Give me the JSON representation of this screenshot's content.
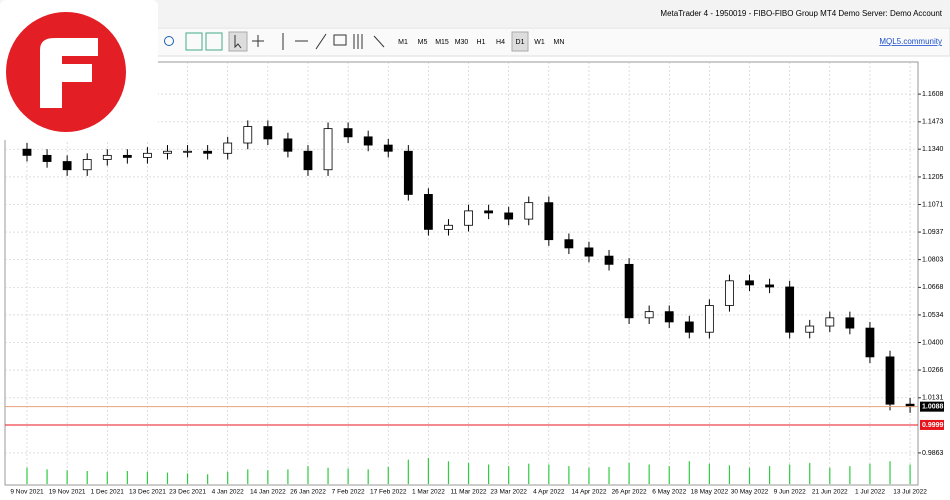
{
  "window": {
    "title": "MetaTrader 4 - 1950019 - FIBO-FIBO Group MT4 Demo Server: Demo Account",
    "timeframes": [
      "M1",
      "M5",
      "M15",
      "M30",
      "H1",
      "H4",
      "D1",
      "W1",
      "MN"
    ],
    "active_timeframe": "D1",
    "link": "MQL5.community"
  },
  "chart_data": {
    "type": "candlestick",
    "categories": [
      "9 Nov 2021",
      null,
      "19 Nov 2021",
      null,
      "1 Dec 2021",
      null,
      "13 Dec 2021",
      null,
      "23 Dec 2021",
      null,
      "4 Jan 2022",
      null,
      "14 Jan 2022",
      null,
      "26 Jan 2022",
      null,
      "7 Feb 2022",
      null,
      "17 Feb 2022",
      null,
      "1 Mar 2022",
      null,
      "11 Mar 2022",
      null,
      "23 Mar 2022",
      null,
      "4 Apr 2022",
      null,
      "14 Apr 2022",
      null,
      "26 Apr 2022",
      null,
      "6 May 2022",
      null,
      "18 May 2022",
      null,
      "30 May 2022",
      null,
      "9 Jun 2022",
      null,
      "21 Jun 2022",
      null,
      "1 Jul 2022",
      null,
      "13 Jul 2022"
    ],
    "open": [
      1.134,
      1.131,
      1.128,
      1.124,
      1.129,
      1.131,
      1.13,
      1.132,
      1.133,
      1.133,
      1.132,
      1.137,
      1.145,
      1.139,
      1.133,
      1.124,
      1.144,
      1.14,
      1.136,
      1.133,
      1.112,
      1.095,
      1.097,
      1.104,
      1.103,
      1.1,
      1.108,
      1.09,
      1.086,
      1.082,
      1.078,
      1.052,
      1.055,
      1.05,
      1.045,
      1.058,
      1.07,
      1.068,
      1.067,
      1.045,
      1.048,
      1.052,
      1.047,
      1.033,
      1.01
    ],
    "high": [
      1.137,
      1.134,
      1.131,
      1.132,
      1.134,
      1.134,
      1.135,
      1.136,
      1.136,
      1.136,
      1.14,
      1.148,
      1.148,
      1.142,
      1.136,
      1.147,
      1.147,
      1.143,
      1.139,
      1.136,
      1.115,
      1.1,
      1.107,
      1.107,
      1.106,
      1.111,
      1.111,
      1.093,
      1.089,
      1.085,
      1.081,
      1.058,
      1.058,
      1.053,
      1.061,
      1.073,
      1.073,
      1.071,
      1.07,
      1.051,
      1.055,
      1.055,
      1.05,
      1.036,
      1.013
    ],
    "low": [
      1.128,
      1.125,
      1.121,
      1.121,
      1.126,
      1.127,
      1.127,
      1.129,
      1.13,
      1.129,
      1.129,
      1.134,
      1.136,
      1.13,
      1.121,
      1.121,
      1.137,
      1.133,
      1.13,
      1.109,
      1.092,
      1.092,
      1.094,
      1.1,
      1.097,
      1.097,
      1.087,
      1.083,
      1.079,
      1.075,
      1.049,
      1.049,
      1.047,
      1.042,
      1.042,
      1.055,
      1.065,
      1.064,
      1.042,
      1.042,
      1.045,
      1.044,
      1.03,
      1.007,
      1.0058
    ],
    "close": [
      1.131,
      1.128,
      1.124,
      1.129,
      1.131,
      1.13,
      1.132,
      1.133,
      1.133,
      1.132,
      1.137,
      1.145,
      1.139,
      1.133,
      1.124,
      1.144,
      1.14,
      1.136,
      1.133,
      1.112,
      1.095,
      1.097,
      1.104,
      1.103,
      1.1,
      1.108,
      1.09,
      1.086,
      1.082,
      1.078,
      1.052,
      1.055,
      1.05,
      1.045,
      1.058,
      1.07,
      1.068,
      1.067,
      1.045,
      1.048,
      1.052,
      1.047,
      1.033,
      1.01,
      1.0088
    ],
    "volume": [
      20,
      18,
      17,
      16,
      15,
      16,
      15,
      14,
      13,
      12,
      15,
      18,
      17,
      18,
      22,
      20,
      19,
      18,
      21,
      30,
      32,
      28,
      26,
      24,
      22,
      25,
      24,
      22,
      20,
      21,
      26,
      24,
      22,
      28,
      25,
      23,
      20,
      22,
      24,
      26,
      20,
      22,
      25,
      28,
      24
    ],
    "volume_color": "#2ecc40",
    "ylim": [
      0.9707,
      1.1764
    ],
    "yticks": [
      0.9863,
      1.0131,
      {
        "value": 1.0266,
        "label": "1.0266"
      },
      {
        "value": 1.04,
        "label": "1.0400"
      },
      1.0534,
      1.0668,
      1.0803,
      1.0937,
      1.1071,
      1.1205,
      {
        "value": 1.134,
        "label": "1.1340"
      },
      1.1473,
      1.1608
    ],
    "grid": true,
    "levels": [
      {
        "value": 1.0088,
        "label": "1.0088",
        "color": "#e9a27a",
        "label_bg": "#000000"
      },
      {
        "value": 0.9999,
        "label": "0.9999",
        "color": "#e8141c",
        "label_bg": "#e8141c"
      }
    ]
  }
}
